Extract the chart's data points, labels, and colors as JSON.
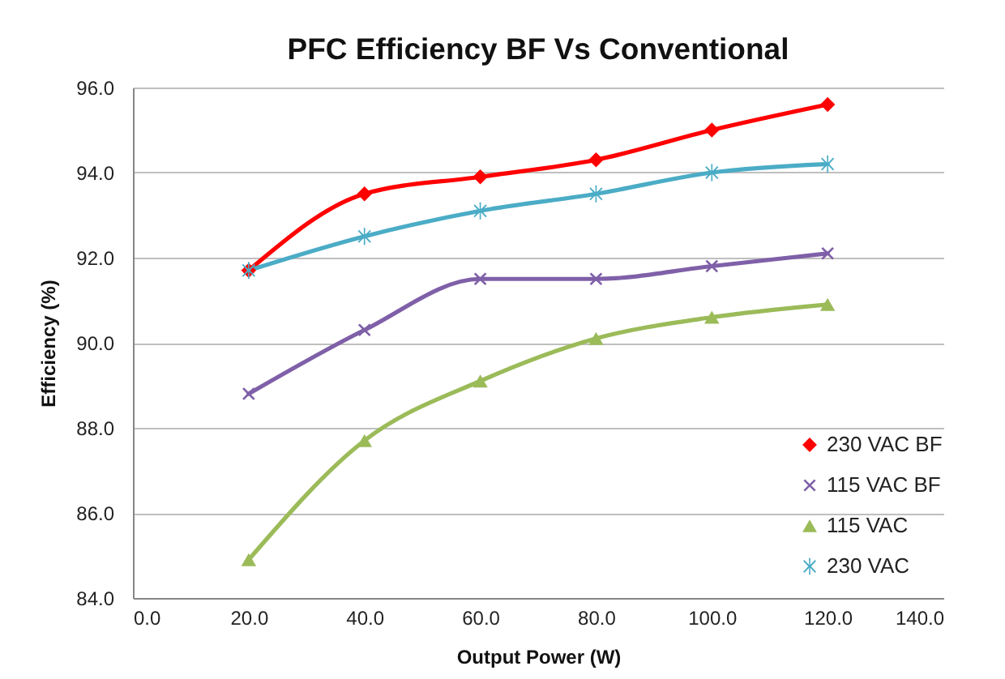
{
  "chart_data": {
    "type": "line",
    "title": "PFC Efficiency BF Vs Conventional",
    "xlabel": "Output Power (W)",
    "ylabel": "Efficiency (%)",
    "x": [
      20,
      40,
      60,
      80,
      100,
      120
    ],
    "series": [
      {
        "name": "230 VAC BF",
        "color": "#ff0000",
        "marker": "diamond",
        "values": [
          91.7,
          93.5,
          93.9,
          94.3,
          95.0,
          95.6
        ]
      },
      {
        "name": "115 VAC BF",
        "color": "#7f60a8",
        "marker": "cross",
        "values": [
          88.8,
          90.3,
          91.5,
          91.5,
          91.8,
          92.1
        ]
      },
      {
        "name": "115 VAC",
        "color": "#9bbb59",
        "marker": "triangle",
        "values": [
          84.9,
          87.7,
          89.1,
          90.1,
          90.6,
          90.9
        ]
      },
      {
        "name": "230 VAC",
        "color": "#4bacc6",
        "marker": "star",
        "values": [
          91.7,
          92.5,
          93.1,
          93.5,
          94.0,
          94.2
        ]
      }
    ],
    "xlim": [
      0,
      140
    ],
    "xticks": [
      {
        "value": 0,
        "label": "0.0"
      },
      {
        "value": 20,
        "label": "20.0"
      },
      {
        "value": 40,
        "label": "40.0"
      },
      {
        "value": 60,
        "label": "60.0"
      },
      {
        "value": 80,
        "label": "80.0"
      },
      {
        "value": 100,
        "label": "100.0"
      },
      {
        "value": 120,
        "label": "120.0"
      },
      {
        "value": 140,
        "label": "140.0"
      }
    ],
    "ylim": [
      84,
      96
    ],
    "yticks": [
      {
        "value": 84,
        "label": "84.0"
      },
      {
        "value": 86,
        "label": "86.0"
      },
      {
        "value": 88,
        "label": "88.0"
      },
      {
        "value": 90,
        "label": "90.0"
      },
      {
        "value": 92,
        "label": "92.0"
      },
      {
        "value": 94,
        "label": "94.0"
      },
      {
        "value": 96,
        "label": "96.0"
      }
    ],
    "grid": "y",
    "legend": "bottom right",
    "line_style": "solid"
  }
}
